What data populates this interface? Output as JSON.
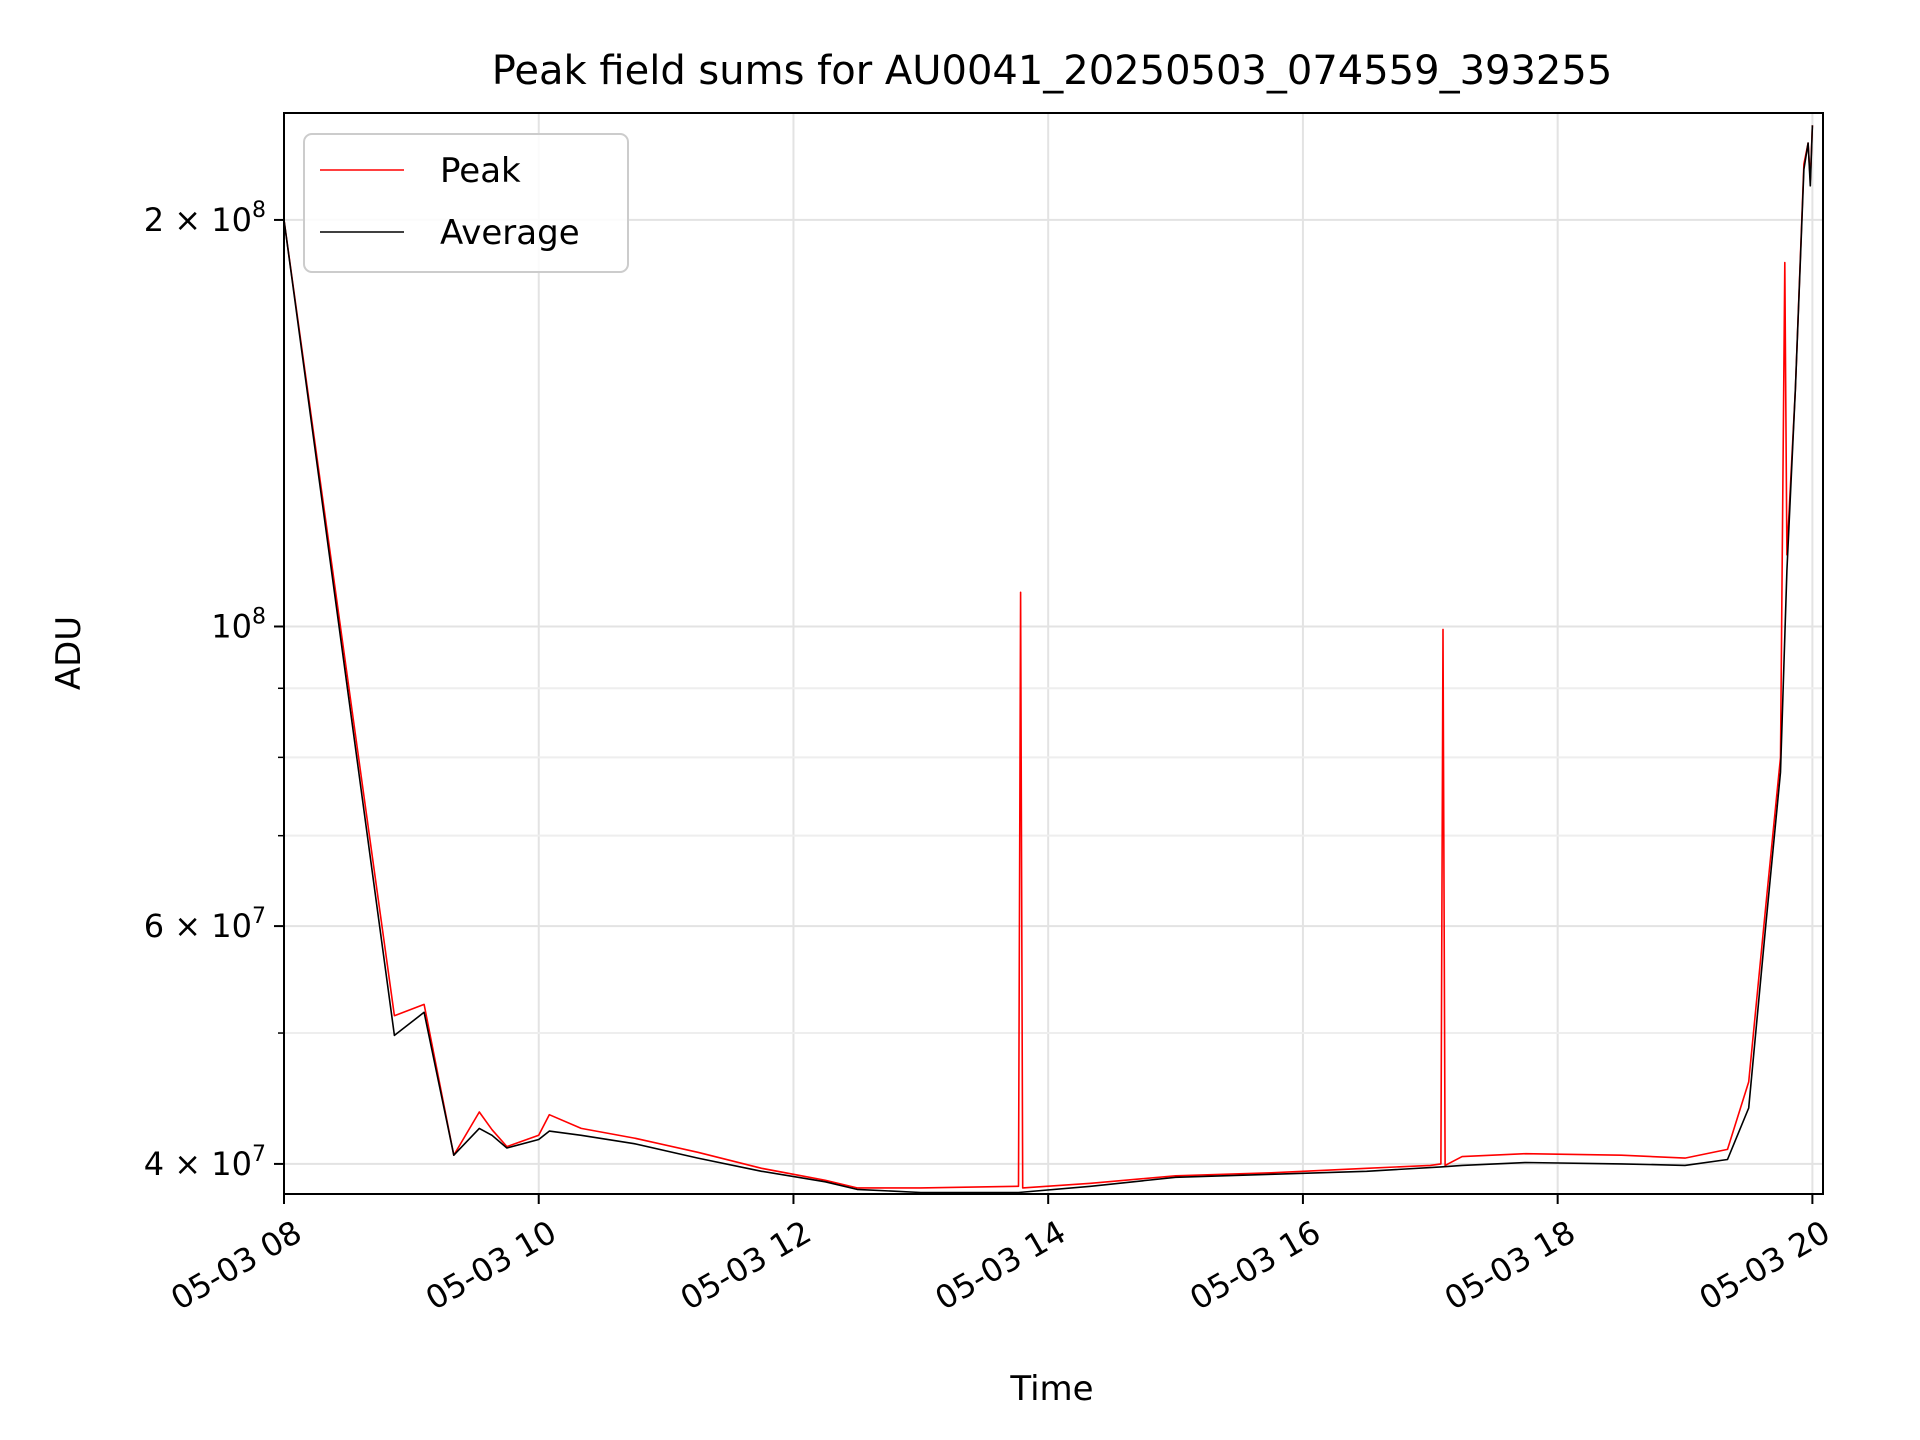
{
  "chart_data": {
    "type": "line",
    "title": "Peak field sums for AU0041_20250503_074559_393255",
    "xlabel": "Time",
    "ylabel": "ADU",
    "x_ticks": [
      "05-03 08",
      "05-03 10",
      "05-03 12",
      "05-03 14",
      "05-03 16",
      "05-03 18",
      "05-03 20"
    ],
    "y_scale": "log",
    "y_major_ticks": [
      {
        "value": 40000000,
        "label": "4 × 10^7"
      },
      {
        "value": 60000000,
        "label": "6 × 10^7"
      },
      {
        "value": 100000000,
        "label": "10^8"
      },
      {
        "value": 200000000,
        "label": "2 × 10^8"
      }
    ],
    "xlim": [
      "2025-05-03 08:00",
      "2025-05-03 20:05"
    ],
    "ylim": [
      38000000,
      240000000
    ],
    "grid": true,
    "legend_position": "upper-left",
    "series": [
      {
        "name": "Peak",
        "color": "#ff0000",
        "points": [
          [
            "2025-05-03 08:00",
            200000000
          ],
          [
            "2025-05-03 08:52",
            51500000
          ],
          [
            "2025-05-03 09:06",
            52500000
          ],
          [
            "2025-05-03 09:20",
            40600000
          ],
          [
            "2025-05-03 09:32",
            43700000
          ],
          [
            "2025-05-03 09:38",
            42400000
          ],
          [
            "2025-05-03 09:45",
            41200000
          ],
          [
            "2025-05-03 10:00",
            42000000
          ],
          [
            "2025-05-03 10:05",
            43500000
          ],
          [
            "2025-05-03 10:20",
            42500000
          ],
          [
            "2025-05-03 10:45",
            41800000
          ],
          [
            "2025-05-03 11:15",
            40800000
          ],
          [
            "2025-05-03 11:45",
            39700000
          ],
          [
            "2025-05-03 12:15",
            38900000
          ],
          [
            "2025-05-03 12:30",
            38400000
          ],
          [
            "2025-05-03 13:00",
            38400000
          ],
          [
            "2025-05-03 13:46",
            38500000
          ],
          [
            "2025-05-03 13:47",
            106000000
          ],
          [
            "2025-05-03 13:48",
            38400000
          ],
          [
            "2025-05-03 14:20",
            38700000
          ],
          [
            "2025-05-03 15:00",
            39200000
          ],
          [
            "2025-05-03 15:45",
            39400000
          ],
          [
            "2025-05-03 16:30",
            39700000
          ],
          [
            "2025-05-03 17:00",
            39900000
          ],
          [
            "2025-05-03 17:05",
            40000000
          ],
          [
            "2025-05-03 17:06",
            99500000
          ],
          [
            "2025-05-03 17:07",
            39900000
          ],
          [
            "2025-05-03 17:15",
            40500000
          ],
          [
            "2025-05-03 17:45",
            40700000
          ],
          [
            "2025-05-03 18:30",
            40600000
          ],
          [
            "2025-05-03 19:00",
            40400000
          ],
          [
            "2025-05-03 19:20",
            41000000
          ],
          [
            "2025-05-03 19:30",
            46000000
          ],
          [
            "2025-05-03 19:38",
            62000000
          ],
          [
            "2025-05-03 19:45",
            80000000
          ],
          [
            "2025-05-03 19:47",
            186000000
          ],
          [
            "2025-05-03 19:48",
            113000000
          ],
          [
            "2025-05-03 19:52",
            150000000
          ],
          [
            "2025-05-03 19:56",
            220000000
          ],
          [
            "2025-05-03 19:58",
            228000000
          ],
          [
            "2025-05-03 19:59",
            214000000
          ],
          [
            "2025-05-03 20:00",
            235000000
          ]
        ]
      },
      {
        "name": "Average",
        "color": "#000000",
        "points": [
          [
            "2025-05-03 08:00",
            200000000
          ],
          [
            "2025-05-03 08:52",
            49800000
          ],
          [
            "2025-05-03 09:06",
            51800000
          ],
          [
            "2025-05-03 09:20",
            40600000
          ],
          [
            "2025-05-03 09:32",
            42500000
          ],
          [
            "2025-05-03 09:38",
            42000000
          ],
          [
            "2025-05-03 09:45",
            41100000
          ],
          [
            "2025-05-03 10:00",
            41700000
          ],
          [
            "2025-05-03 10:05",
            42300000
          ],
          [
            "2025-05-03 10:20",
            42000000
          ],
          [
            "2025-05-03 10:45",
            41400000
          ],
          [
            "2025-05-03 11:15",
            40400000
          ],
          [
            "2025-05-03 11:45",
            39500000
          ],
          [
            "2025-05-03 12:15",
            38800000
          ],
          [
            "2025-05-03 12:30",
            38300000
          ],
          [
            "2025-05-03 13:00",
            38100000
          ],
          [
            "2025-05-03 13:46",
            38100000
          ],
          [
            "2025-05-03 14:20",
            38500000
          ],
          [
            "2025-05-03 15:00",
            39100000
          ],
          [
            "2025-05-03 15:45",
            39300000
          ],
          [
            "2025-05-03 16:30",
            39500000
          ],
          [
            "2025-05-03 17:05",
            39800000
          ],
          [
            "2025-05-03 17:15",
            39900000
          ],
          [
            "2025-05-03 17:45",
            40100000
          ],
          [
            "2025-05-03 18:30",
            40000000
          ],
          [
            "2025-05-03 19:00",
            39900000
          ],
          [
            "2025-05-03 19:20",
            40300000
          ],
          [
            "2025-05-03 19:30",
            44000000
          ],
          [
            "2025-05-03 19:38",
            60000000
          ],
          [
            "2025-05-03 19:45",
            78000000
          ],
          [
            "2025-05-03 19:48",
            110000000
          ],
          [
            "2025-05-03 19:52",
            150000000
          ],
          [
            "2025-05-03 19:56",
            218000000
          ],
          [
            "2025-05-03 19:58",
            228000000
          ],
          [
            "2025-05-03 19:59",
            212000000
          ],
          [
            "2025-05-03 20:00",
            235000000
          ]
        ]
      }
    ]
  }
}
